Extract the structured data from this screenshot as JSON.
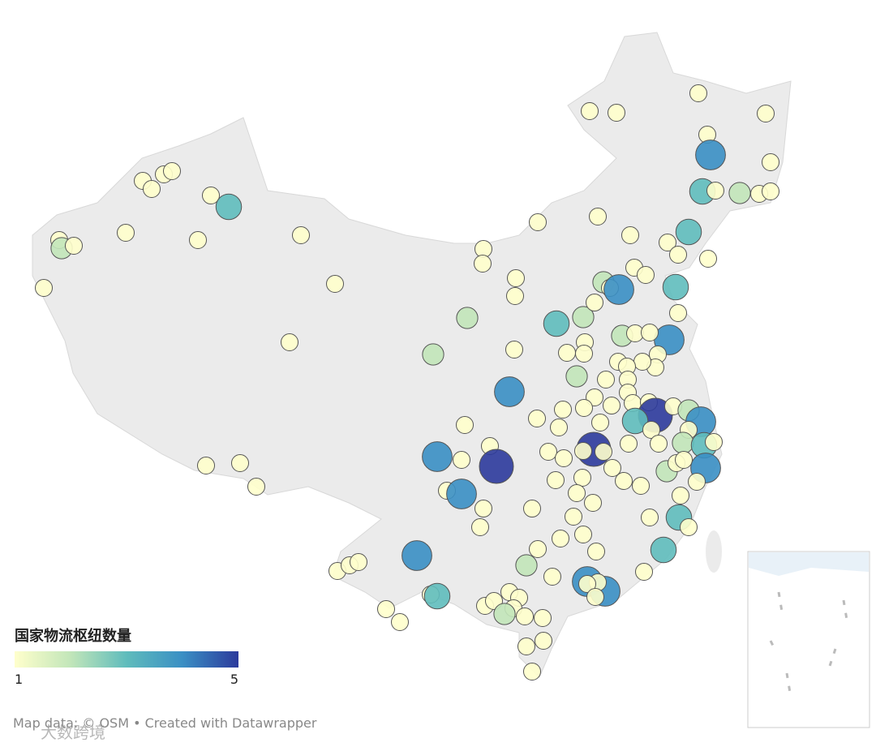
{
  "legend": {
    "title": "国家物流枢纽数量",
    "min": 1,
    "max": 5,
    "colors": [
      "#ffffcc",
      "#c2e6b9",
      "#5fbcbc",
      "#3a8fc4",
      "#2c3a9c"
    ]
  },
  "points": [
    1,
    1,
    1,
    1,
    1,
    4,
    1,
    3,
    1,
    2,
    1,
    1,
    3,
    1,
    1,
    1,
    1,
    1,
    1,
    3,
    1,
    1,
    1,
    1,
    1,
    1,
    3,
    1,
    1,
    1,
    1,
    2,
    1,
    1,
    1,
    1,
    1,
    1,
    1,
    1,
    2,
    2,
    1,
    3,
    2,
    1,
    2,
    1,
    4,
    1,
    1,
    4,
    2,
    1,
    1,
    1,
    1,
    1,
    1,
    1,
    1,
    1,
    1,
    1,
    2,
    1,
    1,
    1,
    1,
    1,
    1,
    1,
    1,
    4,
    5,
    1,
    2,
    4,
    3,
    1,
    1,
    1,
    5,
    1,
    1,
    1,
    1,
    1,
    2,
    3,
    1,
    1,
    1,
    5,
    4,
    1,
    1,
    1,
    1,
    1,
    1,
    1,
    1,
    1,
    2,
    1,
    1,
    4,
    1,
    1,
    1,
    1,
    4,
    1,
    1,
    1,
    1,
    1,
    3,
    1,
    1,
    1,
    1,
    1,
    1,
    3,
    1,
    1,
    1,
    4,
    2,
    1,
    4,
    4,
    1,
    1,
    1,
    1,
    1,
    1,
    1,
    1,
    1,
    1,
    3,
    1,
    1,
    1,
    1,
    1,
    2,
    1,
    1,
    1,
    1,
    1
  ],
  "footer": "Map data: © OSM  • Created with Datawrapper",
  "watermark": "大数跨境"
}
